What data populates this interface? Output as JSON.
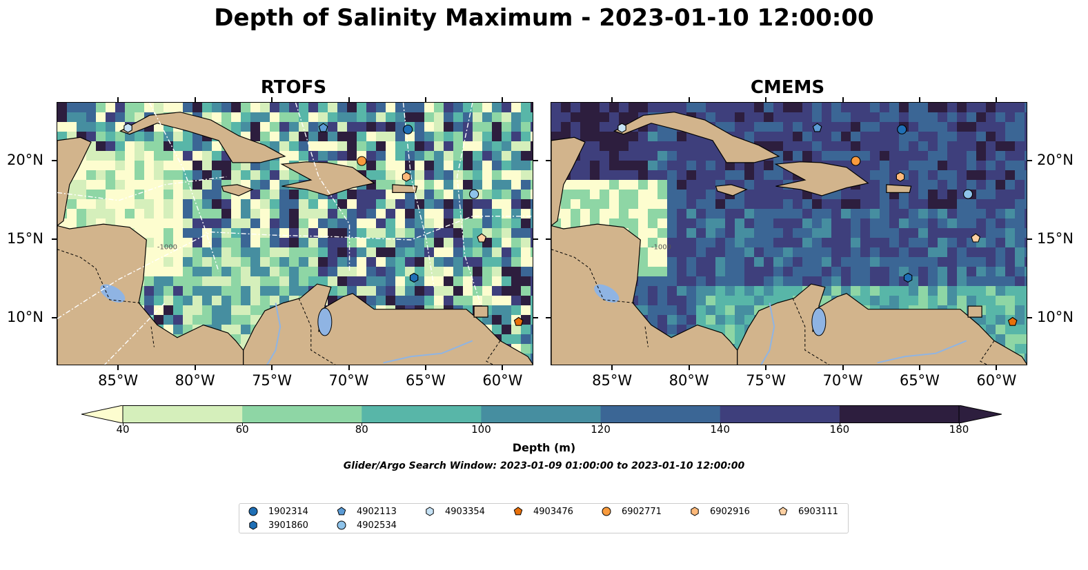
{
  "title": "Depth of Salinity Maximum - 2023-01-10 12:00:00",
  "panels": [
    {
      "title": "RTOFS",
      "model": "rtofs"
    },
    {
      "title": "CMEMS",
      "model": "cmems"
    }
  ],
  "axes": {
    "lon_ticks": [
      "85°W",
      "80°W",
      "75°W",
      "70°W",
      "65°W",
      "60°W"
    ],
    "lat_ticks": [
      "20°N",
      "15°N",
      "10°N"
    ],
    "lon_range": [
      -89,
      -58
    ],
    "lat_range": [
      7,
      23.7
    ],
    "contour_label": "-1000"
  },
  "colorbar": {
    "label": "Depth (m)",
    "ticks": [
      "40",
      "60",
      "80",
      "100",
      "120",
      "140",
      "160",
      "180"
    ],
    "levels": [
      40,
      60,
      80,
      100,
      120,
      140,
      160,
      180
    ],
    "colors": [
      "#fdfdcf",
      "#d5efbb",
      "#8ed6a5",
      "#58b6a8",
      "#468ea0",
      "#3b6695",
      "#3e3f7c",
      "#2d1e3e"
    ],
    "extend": "both"
  },
  "search_window": "Glider/Argo Search Window: 2023-01-09 01:00:00 to 2023-01-10 12:00:00",
  "colors": {
    "land": "#d2b48c",
    "water_features": "#8fb4e3",
    "float_dark_blue": "#1f6fb5",
    "float_mid_blue": "#5b9bd5",
    "float_light_blue": "#c6e2f5",
    "float_dark_orange": "#e8700a",
    "float_orange": "#f99b3d",
    "float_light_orange": "#fdc08a",
    "float_pale_orange": "#fdd0a2"
  },
  "floats": [
    {
      "id": "1902314",
      "marker": "circle",
      "color": "#1f6fb5",
      "lon": -66.2,
      "lat": 22.0
    },
    {
      "id": "3901860",
      "marker": "hexagon",
      "color": "#1f6fb5",
      "lon": -65.8,
      "lat": 12.6
    },
    {
      "id": "4902113",
      "marker": "pentagon",
      "color": "#5b9bd5",
      "lon": -71.7,
      "lat": 22.1
    },
    {
      "id": "4902534",
      "marker": "circle",
      "color": "#8ec3ea",
      "lon": -61.9,
      "lat": 17.9
    },
    {
      "id": "4903354",
      "marker": "hexagon",
      "color": "#c6e2f5",
      "lon": -84.4,
      "lat": 22.1
    },
    {
      "id": "4903476",
      "marker": "pentagon",
      "color": "#e8700a",
      "lon": -59.0,
      "lat": 9.8
    },
    {
      "id": "6902771",
      "marker": "circle",
      "color": "#f99b3d",
      "lon": -69.2,
      "lat": 20.0
    },
    {
      "id": "6902916",
      "marker": "hexagon",
      "color": "#fdb97a",
      "lon": -66.3,
      "lat": 19.0
    },
    {
      "id": "6903111",
      "marker": "pentagon",
      "color": "#fdd0a2",
      "lon": -61.4,
      "lat": 15.1
    }
  ]
}
